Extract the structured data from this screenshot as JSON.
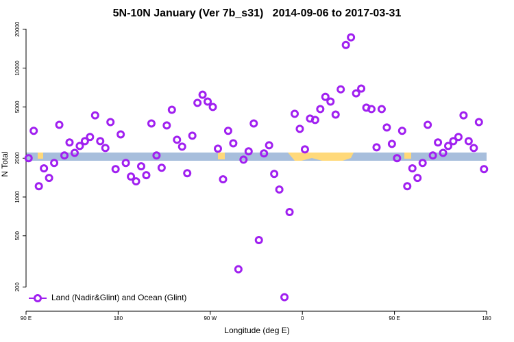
{
  "chart_data": {
    "type": "scatter",
    "title": "5N-10N January (Ver 7b_s31)   2014-09-06 to 2017-03-31",
    "x_label": "Longitude (deg E)",
    "y_label": "N Total",
    "xlim": [
      90,
      540
    ],
    "xticks": [
      {
        "value": 90,
        "label": "90 E"
      },
      180,
      {
        "value": 270,
        "label": "90 W"
      },
      {
        "value": 360,
        "label": "0"
      },
      {
        "value": 450,
        "label": "90 E"
      },
      {
        "value": 540,
        "label": "180"
      }
    ],
    "ylim": [
      130,
      22000
    ],
    "y_log": true,
    "yticks": [
      200,
      500,
      1000,
      2000,
      5000,
      10000,
      20000
    ],
    "legend": "bottom-left",
    "series": [
      {
        "name": "Land (Nadir&Glint) and Ocean (Glint)",
        "color": "#a020f0",
        "x": [
          92.5,
          97.5,
          102.5,
          107.5,
          112.5,
          117.5,
          122.5,
          127.5,
          132.5,
          137.5,
          142.5,
          147.5,
          152.5,
          157.5,
          162.5,
          167.5,
          172.5,
          177.5,
          182.5,
          187.5,
          192.5,
          197.5,
          202.5,
          207.5,
          212.5,
          217.5,
          222.5,
          227.5,
          232.5,
          237.5,
          242.5,
          247.5,
          252.5,
          257.5,
          262.5,
          267.5,
          272.5,
          277.5,
          282.5,
          287.5,
          292.5,
          297.5,
          302.5,
          307.5,
          312.5,
          317.5,
          322.5,
          327.5,
          332.5,
          337.5,
          342.5,
          347.5,
          352.5,
          357.5,
          362.5,
          367.5,
          372.5,
          377.5,
          382.5,
          387.5,
          392.5,
          397.5,
          402.5,
          407.5,
          412.5,
          417.5,
          422.5,
          427.5,
          432.5,
          437.5,
          442.5,
          447.5,
          452.5,
          457.5,
          462.5,
          467.5,
          472.5,
          477.5,
          482.5,
          487.5,
          492.5,
          497.5,
          502.5,
          507.5,
          512.5,
          517.5,
          522.5,
          527.5,
          532.5,
          537.5
        ],
        "values": [
          2000,
          3260,
          1213,
          1667,
          1406,
          1837,
          3630,
          2100,
          2650,
          2200,
          2490,
          2710,
          2920,
          4300,
          2710,
          2400,
          3810,
          1645,
          3060,
          1837,
          1440,
          1322,
          1730,
          1476,
          3720,
          2100,
          1687,
          3590,
          4750,
          2780,
          2460,
          1530,
          2990,
          5370,
          6210,
          5500,
          4990,
          2370,
          1371,
          3260,
          2610,
          275,
          1950,
          2260,
          3720,
          463,
          2180,
          2520,
          1510,
          1143,
          167,
          764,
          4420,
          3380,
          2340,
          4060,
          3960,
          4810,
          5980,
          5500,
          4360,
          6840,
          15100,
          17300,
          6370,
          6930,
          4930,
          4810,
          2430,
          4810,
          3460,
          2580,
          2000,
          3260,
          1213,
          1667,
          1406,
          1837,
          3630,
          2100,
          2650,
          2200,
          2490,
          2710,
          2920,
          4300,
          2710,
          2400,
          3810,
          1645
        ]
      }
    ]
  }
}
